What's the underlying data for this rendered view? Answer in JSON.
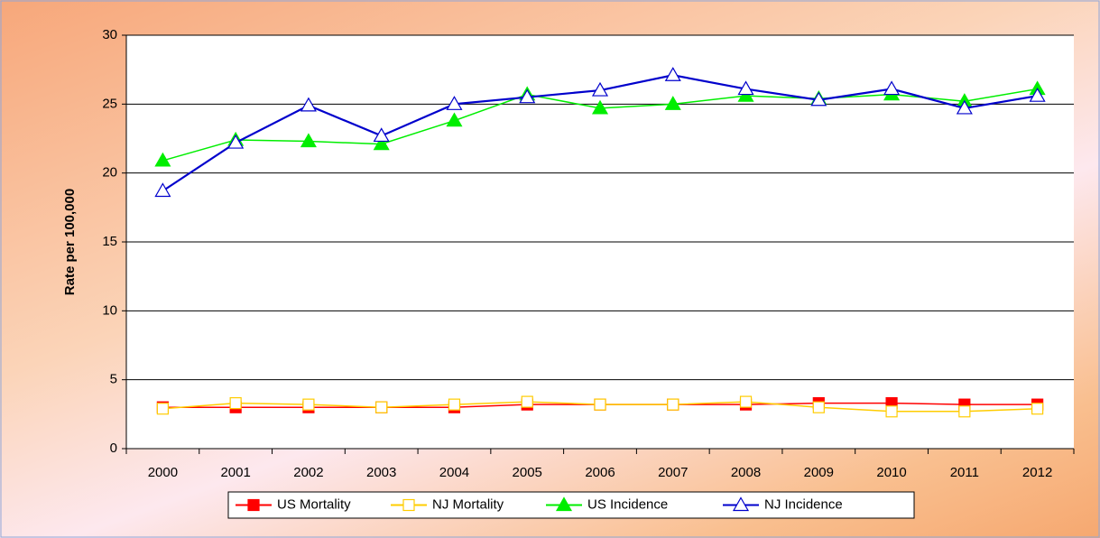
{
  "chart_data": {
    "type": "line",
    "y_label": "Rate per 100,000",
    "categories": [
      "2000",
      "2001",
      "2002",
      "2003",
      "2004",
      "2005",
      "2006",
      "2007",
      "2008",
      "2009",
      "2010",
      "2011",
      "2012"
    ],
    "series": [
      {
        "name": "US Mortality",
        "color": "#ff0000",
        "marker": "square",
        "marker_fill": "#ff0000",
        "values": [
          3.0,
          3.0,
          3.0,
          3.0,
          3.0,
          3.2,
          3.2,
          3.2,
          3.2,
          3.3,
          3.3,
          3.2,
          3.2
        ]
      },
      {
        "name": "NJ Mortality",
        "color": "#ffcc00",
        "marker": "square",
        "marker_fill": "#ffffff",
        "values": [
          2.9,
          3.3,
          3.2,
          3.0,
          3.2,
          3.4,
          3.2,
          3.2,
          3.4,
          3.0,
          2.7,
          2.7,
          2.9
        ]
      },
      {
        "name": "US Incidence",
        "color": "#00ee00",
        "marker": "triangle",
        "marker_fill": "#00ee00",
        "values": [
          20.9,
          22.4,
          22.3,
          22.1,
          23.8,
          25.7,
          24.7,
          25.0,
          25.6,
          25.4,
          25.7,
          25.2,
          26.1
        ]
      },
      {
        "name": "NJ Incidence",
        "color": "#0000cc",
        "marker": "triangle",
        "marker_fill": "#ffffff",
        "values": [
          18.7,
          22.2,
          24.9,
          22.7,
          25.0,
          25.5,
          26.0,
          27.1,
          26.1,
          25.3,
          26.1,
          24.7,
          25.6
        ]
      }
    ],
    "ylim": [
      0,
      30
    ],
    "yticks": [
      0,
      5,
      10,
      15,
      20,
      25,
      30
    ],
    "grid": true,
    "legend": "bottom"
  }
}
